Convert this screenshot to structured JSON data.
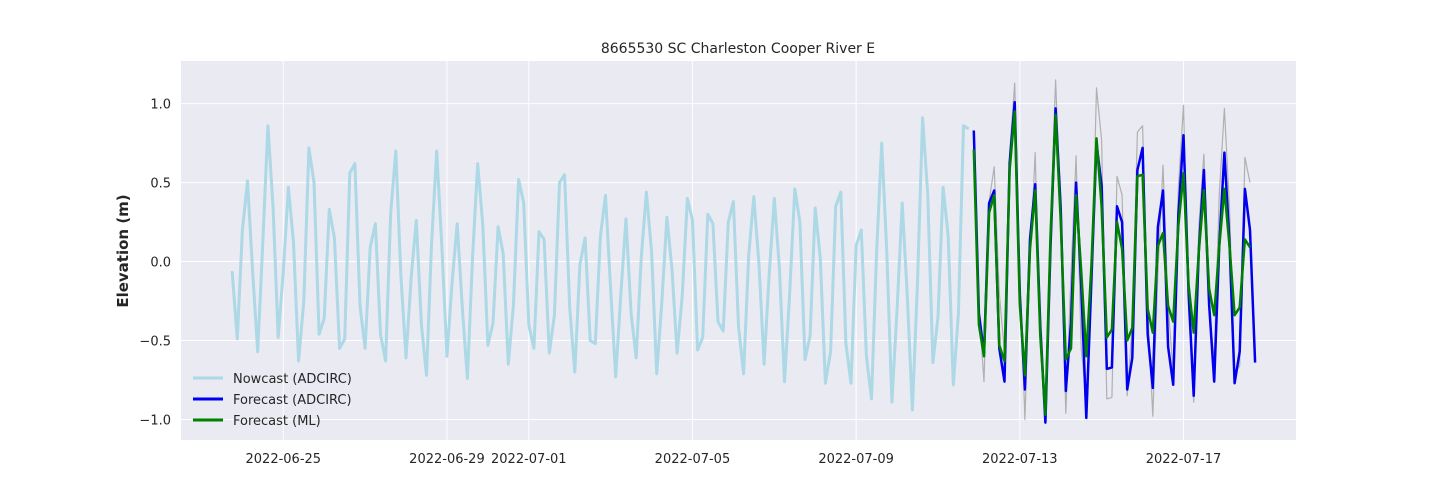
{
  "chart_data": {
    "type": "line",
    "title": "8665530 SC Charleston Cooper River E",
    "xlabel": "",
    "ylabel": "Elevation (m)",
    "xlim": [
      "2022-06-22T12:00",
      "2022-07-19T18:00"
    ],
    "ylim": [
      -1.13,
      1.27
    ],
    "x_ticks": [
      "2022-06-25",
      "2022-06-29",
      "2022-07-01",
      "2022-07-05",
      "2022-07-09",
      "2022-07-13",
      "2022-07-17"
    ],
    "y_ticks": [
      -1.0,
      -0.5,
      0.0,
      0.5,
      1.0
    ],
    "y_tick_labels": [
      "−1.0",
      "−0.5",
      "0.0",
      "0.5",
      "1.0"
    ],
    "grid": true,
    "legend_position": "lower-left",
    "colors": {
      "background": "#eaeaf2",
      "grid": "#ffffff",
      "nowcast": "#add8e6",
      "forecast_adcirc": "#0000ee",
      "forecast_ml": "#008000",
      "observed": "#b0b0b0"
    },
    "series": [
      {
        "name": "Nowcast (ADCIRC)",
        "color": "#add8e6",
        "legend": true,
        "start": "2022-06-23T18:00",
        "step_hours": 3,
        "values": [
          -0.06,
          -0.49,
          0.2,
          0.51,
          -0.06,
          -0.57,
          0.12,
          0.86,
          0.34,
          -0.48,
          -0.06,
          0.47,
          0.12,
          -0.63,
          -0.25,
          0.72,
          0.5,
          -0.46,
          -0.36,
          0.33,
          0.15,
          -0.55,
          -0.49,
          0.56,
          0.62,
          -0.28,
          -0.55,
          0.09,
          0.24,
          -0.46,
          -0.63,
          0.31,
          0.7,
          -0.09,
          -0.61,
          -0.1,
          0.26,
          -0.4,
          -0.72,
          0.12,
          0.7,
          0.1,
          -0.6,
          -0.13,
          0.24,
          -0.29,
          -0.74,
          0.02,
          0.62,
          0.23,
          -0.53,
          -0.39,
          0.22,
          0.05,
          -0.65,
          -0.27,
          0.52,
          0.37,
          -0.4,
          -0.55,
          0.19,
          0.14,
          -0.58,
          -0.34,
          0.5,
          0.55,
          -0.29,
          -0.7,
          -0.02,
          0.15,
          -0.5,
          -0.52,
          0.16,
          0.42,
          -0.17,
          -0.73,
          -0.2,
          0.27,
          -0.33,
          -0.61,
          0.03,
          0.44,
          0.06,
          -0.71,
          -0.26,
          0.28,
          -0.05,
          -0.58,
          -0.22,
          0.4,
          0.26,
          -0.56,
          -0.48,
          0.3,
          0.24,
          -0.38,
          -0.44,
          0.25,
          0.38,
          -0.41,
          -0.71,
          0.04,
          0.41,
          -0.02,
          -0.65,
          -0.08,
          0.4,
          -0.04,
          -0.76,
          -0.21,
          0.46,
          0.25,
          -0.62,
          -0.47,
          0.34,
          0.02,
          -0.77,
          -0.57,
          0.35,
          0.44,
          -0.52,
          -0.77,
          0.1,
          0.2,
          -0.6,
          -0.87,
          0.06,
          0.75,
          0.06,
          -0.89,
          -0.3,
          0.37,
          -0.22,
          -0.94,
          -0.13,
          0.91,
          0.43,
          -0.64,
          -0.35,
          0.47,
          0.16,
          -0.78,
          -0.33,
          0.86,
          0.84
        ]
      },
      {
        "name": "Forecast (ADCIRC)",
        "color": "#0000ee",
        "legend": true,
        "start": "2022-07-11T21:00",
        "step_hours": 3,
        "values": [
          0.83,
          -0.33,
          -0.58,
          0.37,
          0.45,
          -0.55,
          -0.76,
          0.62,
          1.01,
          -0.21,
          -0.81,
          0.14,
          0.49,
          -0.41,
          -1.02,
          0.09,
          0.97,
          0.34,
          -0.82,
          -0.39,
          0.5,
          -0.15,
          -0.99,
          -0.12,
          0.75,
          0.48,
          -0.68,
          -0.67,
          0.35,
          0.25,
          -0.81,
          -0.61,
          0.58,
          0.72,
          -0.46,
          -0.8,
          0.22,
          0.45,
          -0.54,
          -0.78,
          0.3,
          0.8,
          -0.2,
          -0.85,
          0.07,
          0.58,
          -0.27,
          -0.76,
          0.11,
          0.69,
          0.12,
          -0.77,
          -0.57,
          0.46,
          0.2,
          -0.64
        ]
      },
      {
        "name": "Forecast (ML)",
        "color": "#008000",
        "legend": true,
        "start": "2022-07-11T21:00",
        "step_hours": 3,
        "values": [
          0.71,
          -0.4,
          -0.6,
          0.31,
          0.42,
          -0.53,
          -0.63,
          0.58,
          0.95,
          -0.27,
          -0.72,
          0.08,
          0.45,
          -0.47,
          -0.97,
          0.16,
          0.93,
          0.26,
          -0.62,
          -0.55,
          0.42,
          -0.06,
          -0.6,
          -0.03,
          0.78,
          0.35,
          -0.48,
          -0.43,
          0.25,
          0.08,
          -0.5,
          -0.42,
          0.54,
          0.55,
          -0.3,
          -0.45,
          0.1,
          0.18,
          -0.28,
          -0.38,
          0.23,
          0.56,
          -0.15,
          -0.45,
          0.06,
          0.45,
          -0.17,
          -0.34,
          0.1,
          0.46,
          0.1,
          -0.34,
          -0.29,
          0.14,
          0.09
        ]
      },
      {
        "color": "#b0b0b0",
        "legend": false,
        "start": "2022-07-11T21:00",
        "step_hours": 3,
        "values": [
          0.74,
          -0.3,
          -0.76,
          0.38,
          0.6,
          -0.2,
          -0.58,
          0.68,
          1.13,
          -0.05,
          -1.0,
          0.0,
          0.69,
          -0.52,
          -0.9,
          0.25,
          1.15,
          0.3,
          -0.96,
          -0.08,
          0.67,
          -0.55,
          -0.88,
          -0.17,
          1.1,
          0.77,
          -0.87,
          -0.86,
          0.54,
          0.42,
          -0.85,
          -0.4,
          0.82,
          0.86,
          -0.3,
          -0.98,
          -0.07,
          0.61,
          -0.28,
          -0.7,
          0.47,
          0.99,
          -0.3,
          -0.89,
          0.22,
          0.68,
          -0.3,
          -0.62,
          0.43,
          0.97,
          0.34,
          -0.71,
          -0.66,
          0.66,
          0.5
        ]
      }
    ]
  }
}
